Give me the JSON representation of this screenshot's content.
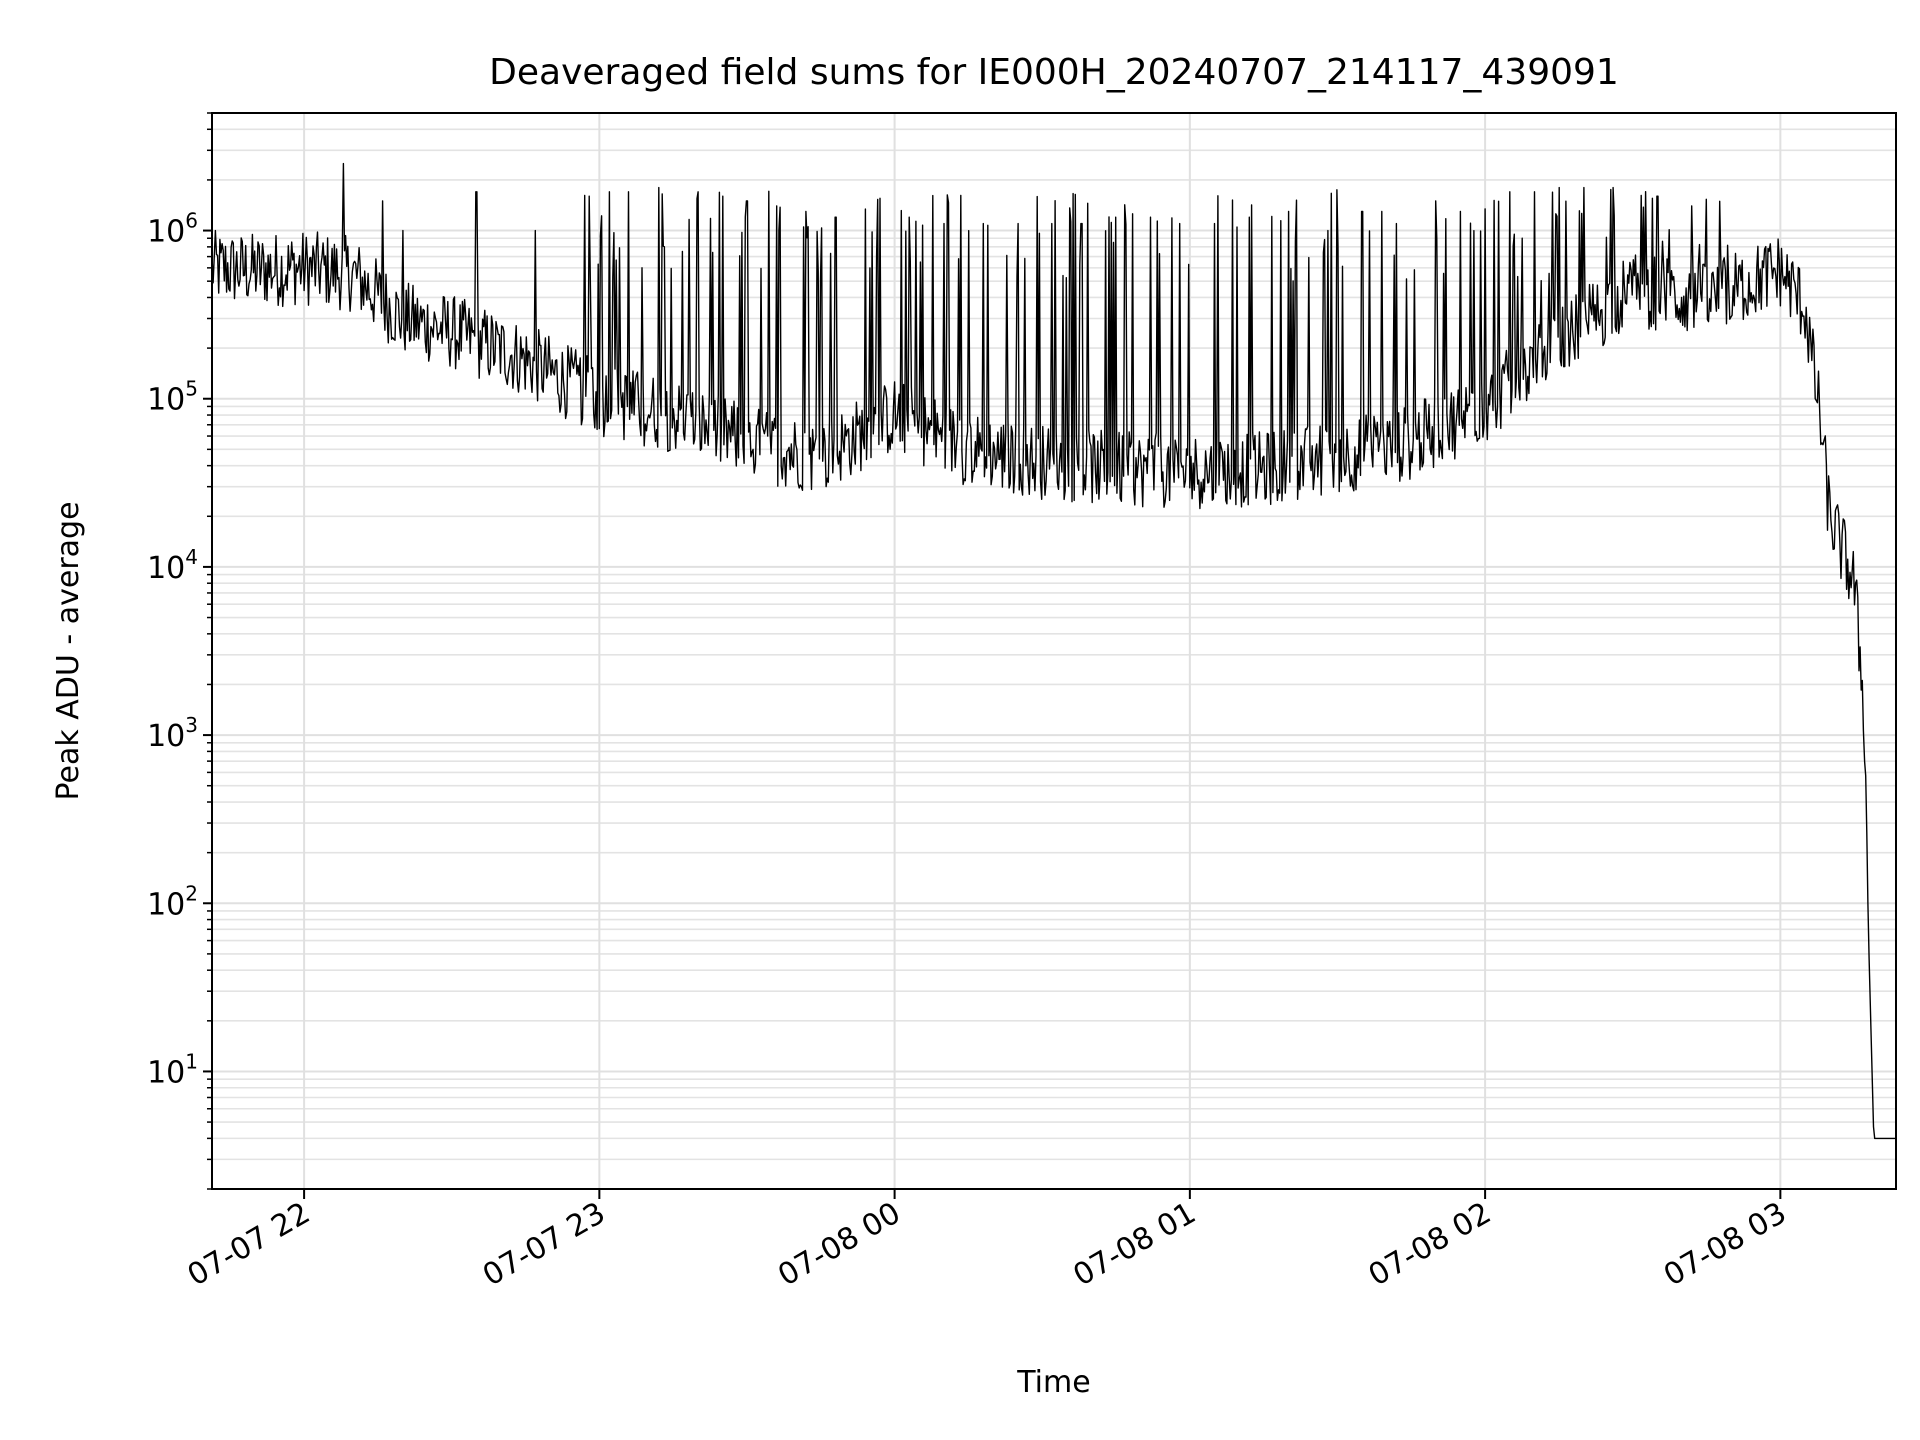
{
  "chart_data": {
    "type": "line",
    "title": "Deaveraged field sums for IE000H_20240707_214117_439091",
    "xlabel": "Time",
    "ylabel": "Peak ADU - average",
    "yscale": "log",
    "ylim": [
      2,
      5000000
    ],
    "xlim": [
      "2024-07-07 21:41:17",
      "2024-07-08 03:23:30"
    ],
    "grid": true,
    "line_color": "#000000",
    "x_ticks": [
      {
        "value": "2024-07-07 22:00",
        "label": "07-07 22"
      },
      {
        "value": "2024-07-07 23:00",
        "label": "07-07 23"
      },
      {
        "value": "2024-07-08 00:00",
        "label": "07-08 00"
      },
      {
        "value": "2024-07-08 01:00",
        "label": "07-08 01"
      },
      {
        "value": "2024-07-08 02:00",
        "label": "07-08 02"
      },
      {
        "value": "2024-07-08 03:00",
        "label": "07-08 03"
      }
    ],
    "y_ticks": [
      {
        "value": 10,
        "base": "10",
        "exp": "1"
      },
      {
        "value": 100,
        "base": "10",
        "exp": "2"
      },
      {
        "value": 1000,
        "base": "10",
        "exp": "3"
      },
      {
        "value": 10000,
        "base": "10",
        "exp": "4"
      },
      {
        "value": 100000,
        "base": "10",
        "exp": "5"
      },
      {
        "value": 1000000,
        "base": "10",
        "exp": "6"
      }
    ],
    "series": [
      {
        "baseline": {
          "x": [
            "2024-07-07 21:41",
            "2024-07-07 21:50",
            "2024-07-07 22:00",
            "2024-07-07 22:10",
            "2024-07-07 22:20",
            "2024-07-07 22:30",
            "2024-07-07 22:45",
            "2024-07-07 23:00",
            "2024-07-07 23:15",
            "2024-07-07 23:30",
            "2024-07-07 23:45",
            "2024-07-08 00:00",
            "2024-07-08 00:15",
            "2024-07-08 00:30",
            "2024-07-08 00:45",
            "2024-07-08 01:00",
            "2024-07-08 01:15",
            "2024-07-08 01:30",
            "2024-07-08 01:45",
            "2024-07-08 02:00",
            "2024-07-08 02:15",
            "2024-07-08 02:30",
            "2024-07-08 02:45",
            "2024-07-08 03:00",
            "2024-07-08 03:05",
            "2024-07-08 03:08",
            "2024-07-08 03:10",
            "2024-07-08 03:12",
            "2024-07-08 03:15",
            "2024-07-08 03:17",
            "2024-07-08 03:18",
            "2024-07-08 03:19",
            "2024-07-08 03:20",
            "2024-07-08 03:23"
          ],
          "y": [
            600000,
            580000,
            600000,
            550000,
            300000,
            250000,
            170000,
            100000,
            80000,
            55000,
            45000,
            80000,
            50000,
            42000,
            38000,
            37000,
            38000,
            45000,
            55000,
            90000,
            220000,
            450000,
            380000,
            580000,
            350000,
            80000,
            20000,
            14000,
            8000,
            1500,
            50,
            4,
            4,
            4
          ]
        },
        "spikes": {
          "x": [
            "2024-07-07 22:08",
            "2024-07-07 22:16",
            "2024-07-07 22:20",
            "2024-07-07 22:35",
            "2024-07-07 22:47",
            "2024-07-07 22:58",
            "2024-07-07 23:02",
            "2024-07-07 23:06",
            "2024-07-07 23:12",
            "2024-07-07 23:20",
            "2024-07-07 23:25",
            "2024-07-07 23:30",
            "2024-07-07 23:36",
            "2024-07-07 23:42",
            "2024-07-07 23:48",
            "2024-07-07 23:55",
            "2024-07-08 00:03",
            "2024-07-08 00:10",
            "2024-07-08 00:18",
            "2024-07-08 00:25",
            "2024-07-08 00:32",
            "2024-07-08 00:38",
            "2024-07-08 00:45",
            "2024-07-08 00:52",
            "2024-07-08 00:58",
            "2024-07-08 01:05",
            "2024-07-08 01:12",
            "2024-07-08 01:20",
            "2024-07-08 01:28",
            "2024-07-08 01:35",
            "2024-07-08 01:42",
            "2024-07-08 01:50",
            "2024-07-08 01:55",
            "2024-07-08 02:05",
            "2024-07-08 02:10",
            "2024-07-08 02:15",
            "2024-07-08 02:20",
            "2024-07-08 02:26",
            "2024-07-08 02:35",
            "2024-07-08 02:42"
          ],
          "y": [
            2500000,
            1500000,
            1000000,
            1700000,
            1000000,
            1600000,
            1700000,
            1700000,
            1800000,
            1700000,
            1600000,
            1500000,
            1400000,
            1300000,
            1200000,
            600000,
            1200000,
            1100000,
            1100000,
            1100000,
            1100000,
            1100000,
            1200000,
            1200000,
            1100000,
            1100000,
            1200000,
            1300000,
            1000000,
            1300000,
            1100000,
            1500000,
            1300000,
            1700000,
            1700000,
            1800000,
            1800000,
            1800000,
            1600000,
            1400000
          ]
        }
      }
    ]
  }
}
